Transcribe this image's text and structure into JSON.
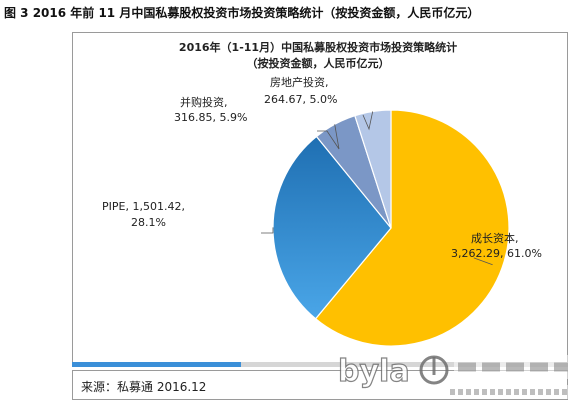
{
  "caption": "图 3 2016 年前 11 月中国私募股权投资市场投资策略统计（按投资金额，人民币亿元）",
  "source": "来源：私募通 2016.12",
  "slider": {
    "position": 0.34
  },
  "watermark": {
    "brand": "byla",
    "tagline": "宝亿乐教育",
    "phone": "400-883-9957",
    "site": "bylaedu.com"
  },
  "colors": {
    "growth": "#FFC000",
    "pipe": "#2F86CC",
    "ma": "#7B97C6",
    "realestate": "#B4C7E7",
    "frame": "#9A9A9A"
  },
  "chart_data": {
    "type": "pie",
    "title": "2016年（1-11月）中国私募股权投资市场投资策略统计",
    "subtitle": "（按投资金额，人民币亿元）",
    "start_angle_deg": 0,
    "direction": "clockwise",
    "slices": [
      {
        "name": "成长资本",
        "value": 3262.29,
        "percent": "61.0%",
        "value_label": "3,262.29",
        "color": "#FFC000"
      },
      {
        "name": "PIPE",
        "value": 1501.42,
        "percent": "28.1%",
        "value_label": "1,501.42",
        "color": "#2F86CC"
      },
      {
        "name": "并购投资",
        "value": 316.85,
        "percent": "5.9%",
        "value_label": "316.85",
        "color": "#7B97C6"
      },
      {
        "name": "房地产投资",
        "value": 264.67,
        "percent": "5.0%",
        "value_label": "264.67",
        "color": "#B4C7E7"
      }
    ],
    "labels": [
      {
        "slice": 0,
        "line1": "成长资本,",
        "line2": "3,262.29, 61.0%"
      },
      {
        "slice": 1,
        "line1": "PIPE, 1,501.42,",
        "line2": "28.1%"
      },
      {
        "slice": 2,
        "line1": "并购投资,",
        "line2": "316.85, 5.9%"
      },
      {
        "slice": 3,
        "line1": "房地产投资,",
        "line2": "264.67, 5.0%"
      }
    ]
  }
}
